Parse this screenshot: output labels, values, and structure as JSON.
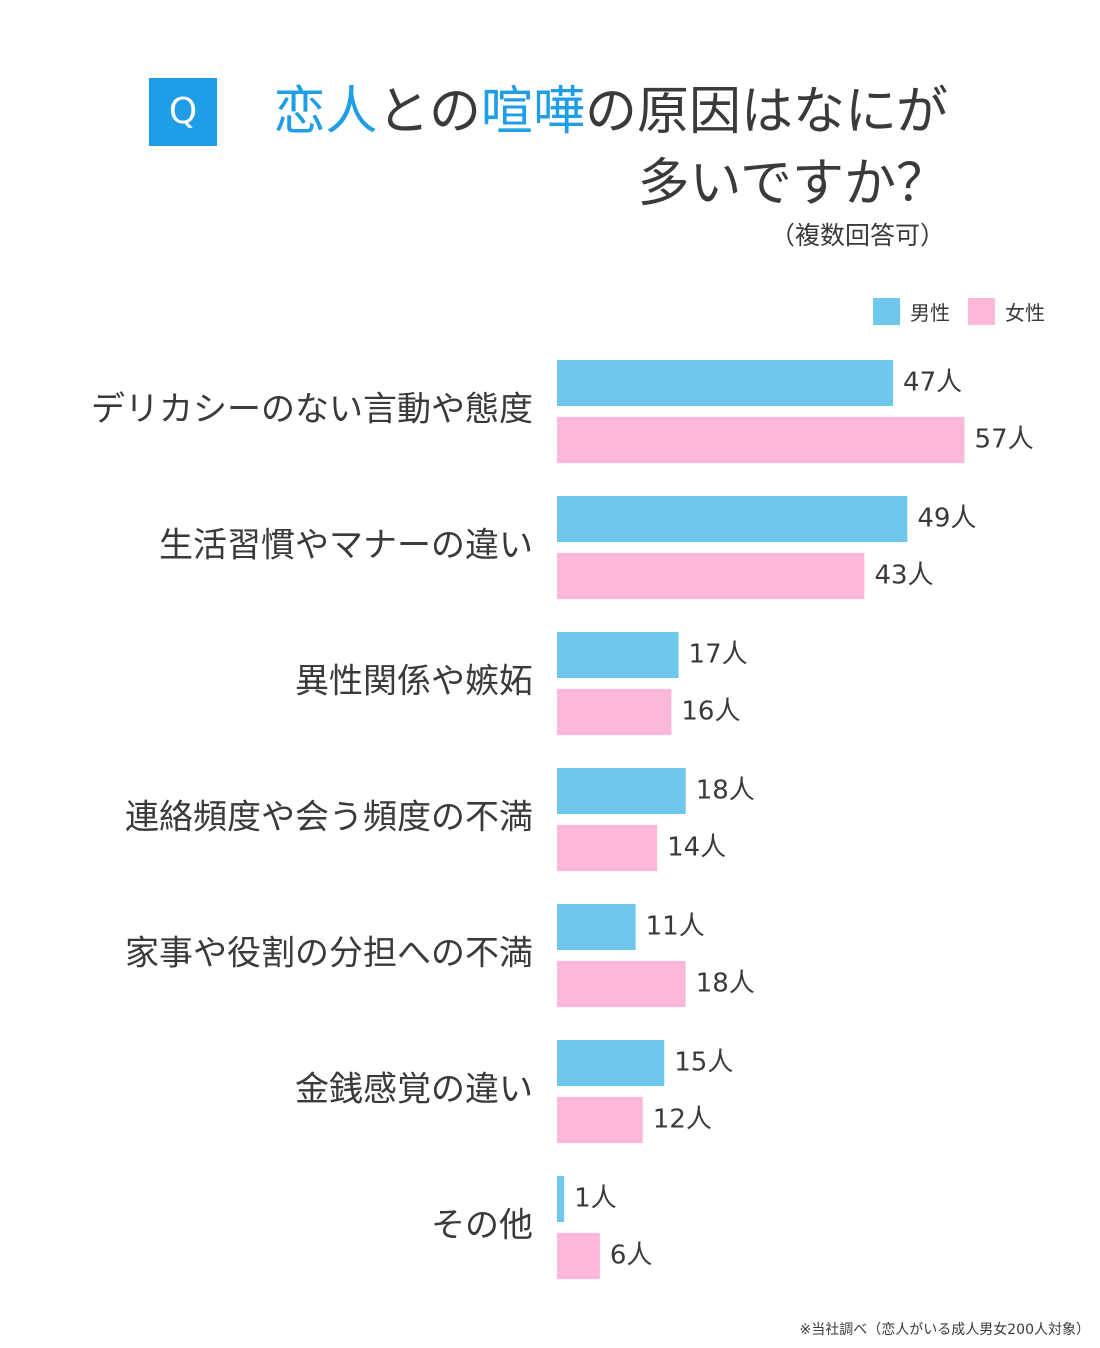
{
  "header": {
    "q_label": "Q",
    "title_line1": [
      {
        "text": "恋人",
        "accent": true
      },
      {
        "text": "との",
        "accent": false
      },
      {
        "text": "喧嘩",
        "accent": true
      },
      {
        "text": "の原因はなにが",
        "accent": false
      }
    ],
    "title_line2": "多いですか？",
    "subtitle": "（複数回答可）"
  },
  "colors": {
    "accent": "#1f9de6",
    "male": "#6ec8ee",
    "female": "#fdb8d8",
    "text": "#3a3a3a"
  },
  "chart_data": {
    "type": "bar",
    "orientation": "horizontal",
    "unit": "人",
    "categories": [
      "デリカシーのない言動や態度",
      "生活習慣やマナーの違い",
      "異性関係や嫉妬",
      "連絡頻度や会う頻度の不満",
      "家事や役割の分担への不満",
      "金銭感覚の違い",
      "その他"
    ],
    "series": [
      {
        "name": "男性",
        "color": "#6ec8ee",
        "values": [
          47,
          49,
          17,
          18,
          11,
          15,
          1
        ]
      },
      {
        "name": "女性",
        "color": "#fdb8d8",
        "values": [
          57,
          43,
          16,
          14,
          18,
          12,
          6
        ]
      }
    ],
    "legend_position": "top-right",
    "grid": false
  },
  "footnote": "※当社調べ（恋人がいる成人男女200人対象）"
}
